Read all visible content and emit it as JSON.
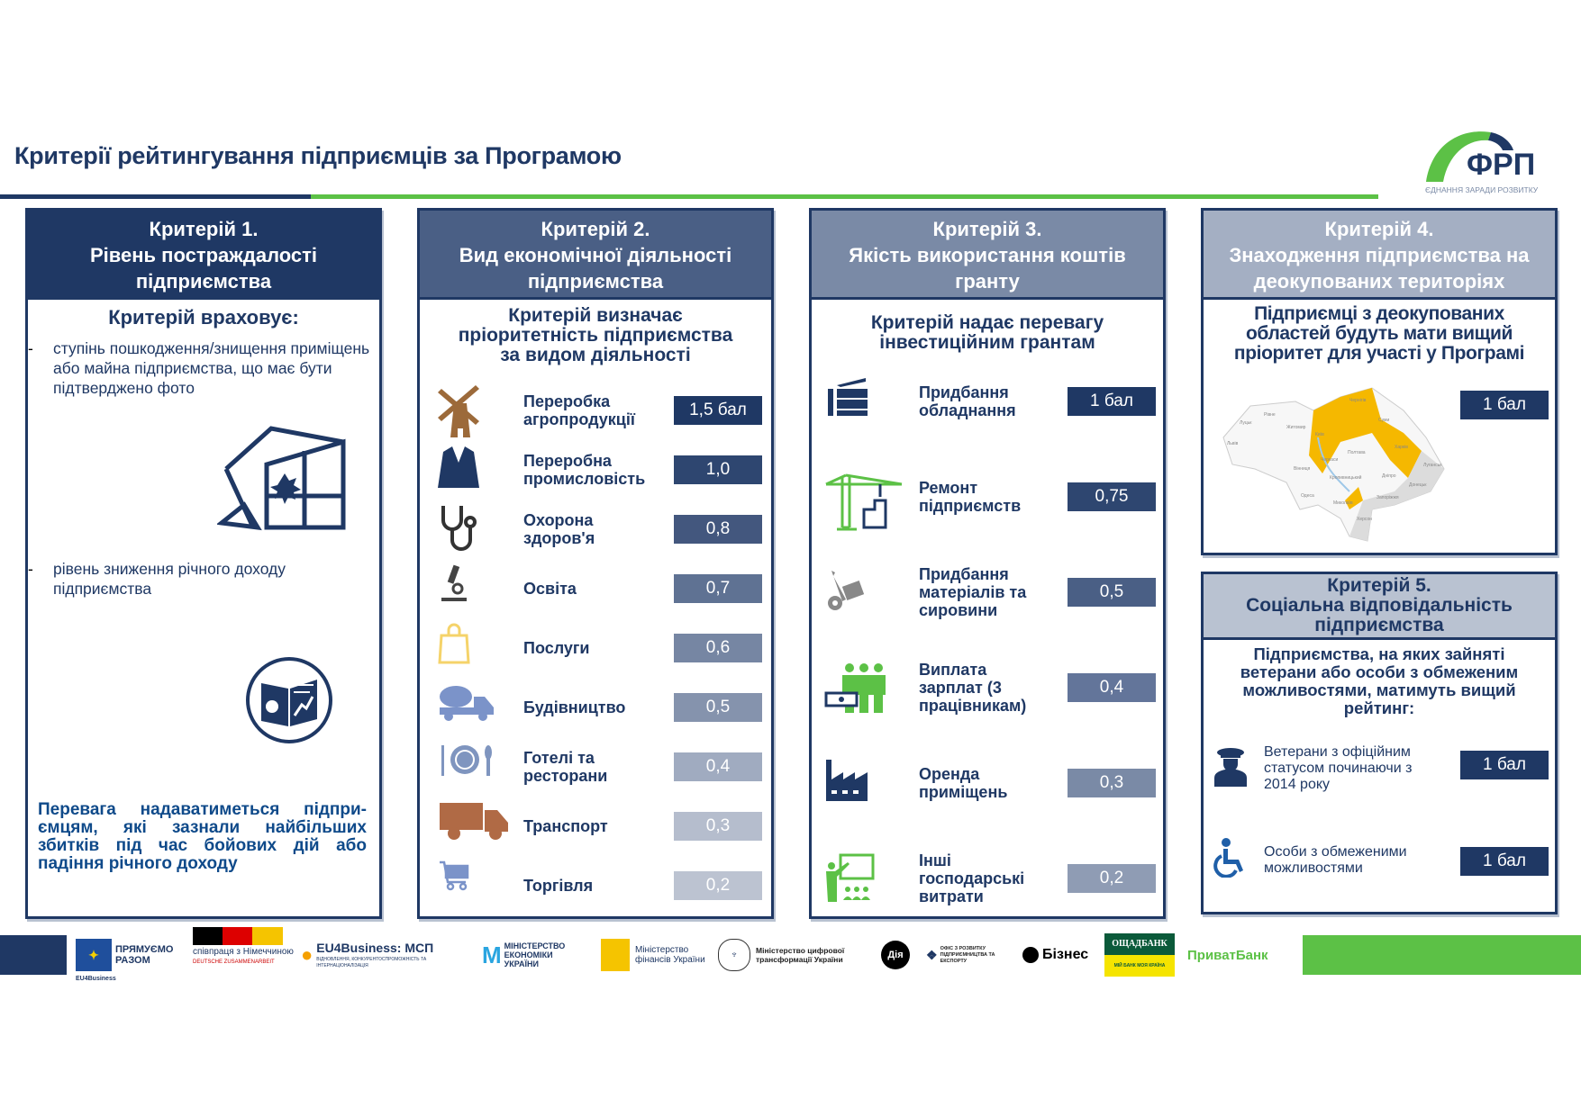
{
  "title": "Критерії рейтингування підприємців за Програмою",
  "logo": {
    "name": "ФРП",
    "tagline": "ЄДНАННЯ ЗАРАДИ РОЗВИТКУ"
  },
  "colors": {
    "navy": "#1f3864",
    "green": "#5cc146",
    "amber": "#f5b800",
    "brown": "#9c6a3a"
  },
  "c1": {
    "header": "Критерій 1.\nРівень постраждалості\nпідприємства",
    "lead": "Критерій враховує:",
    "bullets": [
      "ступінь пошкодження/знищення приміщень або майна підприємства, що має бути підтверджено фото",
      "рівень зниження річного доходу підприємства"
    ],
    "note": "Перевага надаватиметься підпри-ємцям, які зазнали найбільших збитків під час бойових дій або падіння річного доходу"
  },
  "c2": {
    "header": "Критерій 2.\nВид економічної діяльності\nпідприємства",
    "lead": "Критерій визначає\nпріоритетність підприємства\nза видом діяльності",
    "items": [
      {
        "label": "Переробка\nагропродукції",
        "score": "1,5 бал",
        "icon": "windmill-icon",
        "color": "#1f3864"
      },
      {
        "label": "Переробна\nпромисловість",
        "score": "1,0",
        "icon": "suit-icon",
        "color": "#2e4670"
      },
      {
        "label": "Охорона\nздоров'я",
        "score": "0,8",
        "icon": "stethoscope-icon",
        "color": "#43577e"
      },
      {
        "label": "Освіта",
        "score": "0,7",
        "icon": "microscope-icon",
        "color": "#5f7293"
      },
      {
        "label": "Послуги",
        "score": "0,6",
        "icon": "shopping-bag-icon",
        "color": "#7686a3"
      },
      {
        "label": "Будівництво",
        "score": "0,5",
        "icon": "cement-truck-icon",
        "color": "#8593ad"
      },
      {
        "label": "Готелі та\nресторани",
        "score": "0,4",
        "icon": "plate-icon",
        "color": "#a0abc0"
      },
      {
        "label": "Транспорт",
        "score": "0,3",
        "icon": "truck-icon",
        "color": "#b5bdcd"
      },
      {
        "label": "Торгівля",
        "score": "0,2",
        "icon": "cart-icon",
        "color": "#bcc3d1"
      }
    ]
  },
  "c3": {
    "header": "Критерій 3.\nЯкість використання коштів\nгранту",
    "lead": "Критерій надає перевагу\nінвестиційним грантам",
    "items": [
      {
        "label": "Придбання\nобладнання",
        "score": "1 бал",
        "icon": "equipment-icon",
        "color": "#1f3864"
      },
      {
        "label": "Ремонт\nпідприємств",
        "score": "0,75",
        "icon": "crane-icon",
        "color": "#2e4670"
      },
      {
        "label": "Придбання\nматеріалів та\nсировини",
        "score": "0,5",
        "icon": "hand-truck-icon",
        "color": "#4a5f85"
      },
      {
        "label": "Виплата\nзарплат (3\nпрацівникам)",
        "score": "0,4",
        "icon": "workers-icon",
        "color": "#63759a"
      },
      {
        "label": "Оренда\nприміщень",
        "score": "0,3",
        "icon": "factory-icon",
        "color": "#7a8aa6"
      },
      {
        "label": "Інші\nгосподарські\nвитрати",
        "score": "0,2",
        "icon": "teacher-icon",
        "color": "#8f9cb4"
      }
    ]
  },
  "c4": {
    "header": "Критерій 4.\nЗнаходження підприємства на\nдеокупованих територіях",
    "lead": "Підприємці з деокупованих\nобластей будуть мати вищий\nпріоритет для участі у Програмі",
    "score": "1 бал",
    "map_labels": [
      "Луцьк",
      "Рівне",
      "Житомир",
      "Чернігів",
      "Суми",
      "Київ",
      "Львів",
      "Полтава",
      "Харків",
      "Луганськ",
      "Черкаси",
      "Вінниця",
      "Дніпро",
      "Донецьк",
      "Кропивницький",
      "Миколаїв",
      "Запоріжжя",
      "Херсон",
      "Одеса"
    ]
  },
  "c5": {
    "header": "Критерій 5.\nСоціальна відповідальність\nпідприємства",
    "lead": "Підприємства, на яких зайняті\nветерани або особи з обмеженим\nможливостями, матимуть вищий\nрейтинг:",
    "items": [
      {
        "label": "Ветерани з офіційним статусом починаючи з 2014 року",
        "score": "1 бал",
        "icon": "veteran-icon"
      },
      {
        "label": "Особи з обмеженими можливостями",
        "score": "1 бал",
        "icon": "wheelchair-icon"
      }
    ]
  },
  "footer": {
    "logos": [
      "EU4Business",
      "ПРЯМУЄМО РАЗОМ",
      "співпраця з Німеччиною",
      "DEUTSCHE ZUSAMMENARBEIT",
      "EU4Business: МСП",
      "ВІДНОВЛЕННЯ, КОНКУРЕНТОСПРОМОЖНІСТЬ ТА ІНТЕРНАЦІОНАЛІЗАЦІЯ",
      "МІНІСТЕРСТВО ЕКОНОМІКИ УКРАЇНИ",
      "Міністерство фінансів України",
      "Міністерство цифрової трансформації України",
      "Дія",
      "ОФІС З РОЗВИТКУ ПІДПРИЄМНИЦТВА ТА ЕКСПОРТУ",
      "Бізнес",
      "ОЩАДБАНК",
      "МІЙ БАНК МОЯ КРАЇНА",
      "ПриватБанк"
    ]
  }
}
